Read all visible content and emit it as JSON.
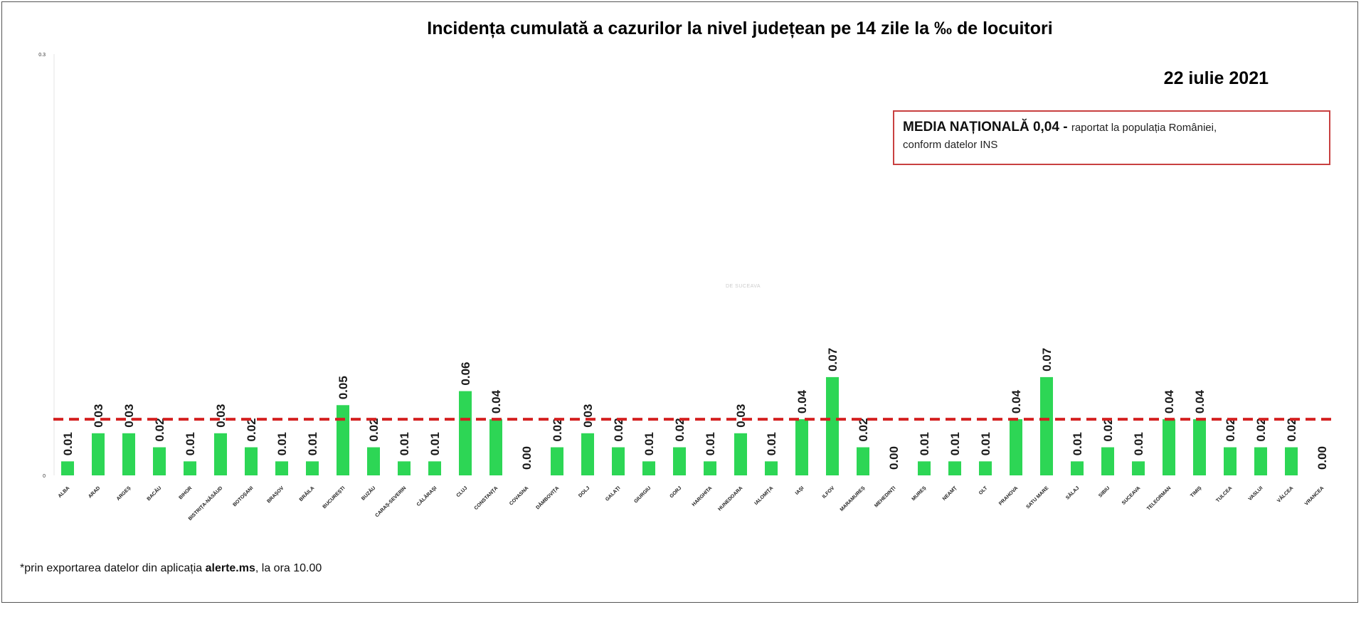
{
  "chart_data": {
    "type": "bar",
    "title": "Incidența cumulată a cazurilor la nivel județean pe 14 zile   la ‰ de locuitori",
    "date": "22 iulie 2021",
    "ylim": [
      0,
      0.3
    ],
    "y_ticks": [
      "0",
      "0.3"
    ],
    "reference_line": {
      "value": 0.04,
      "color": "#d42020",
      "style": "dashed"
    },
    "bar_color": "#2dd655",
    "categories": [
      "ALBA",
      "ARAD",
      "ARGEȘ",
      "BACĂU",
      "BIHOR",
      "BISTRIȚA-NĂSĂUD",
      "BOTOȘANI",
      "BRAȘOV",
      "BRĂILA",
      "BUCUREȘTI",
      "BUZĂU",
      "CARAȘ-SEVERIN",
      "CĂLĂRAȘI",
      "CLUJ",
      "CONSTANȚA",
      "COVASNA",
      "DÂMBOVIȚA",
      "DOLJ",
      "GALAȚI",
      "GIURGIU",
      "GORJ",
      "HARGHITA",
      "HUNEDOARA",
      "IALOMIȚA",
      "IAȘI",
      "ILFOV",
      "MARAMUREȘ",
      "MEHEDINȚI",
      "MUREȘ",
      "NEAMȚ",
      "OLT",
      "PRAHOVA",
      "SATU MARE",
      "SĂLAJ",
      "SIBIU",
      "SUCEAVA",
      "TELEORMAN",
      "TIMIȘ",
      "TULCEA",
      "VASLUI",
      "VÂLCEA",
      "VRANCEA"
    ],
    "values": [
      0.01,
      0.03,
      0.03,
      0.02,
      0.01,
      0.03,
      0.02,
      0.01,
      0.01,
      0.05,
      0.02,
      0.01,
      0.01,
      0.06,
      0.04,
      0.0,
      0.02,
      0.03,
      0.02,
      0.01,
      0.02,
      0.01,
      0.03,
      0.01,
      0.04,
      0.07,
      0.02,
      0.0,
      0.01,
      0.01,
      0.01,
      0.04,
      0.07,
      0.01,
      0.02,
      0.01,
      0.04,
      0.04,
      0.02,
      0.02,
      0.02,
      0.0
    ],
    "labels": [
      "0.01",
      "0.03",
      "0.03",
      "0.02",
      "0.01",
      "0.03",
      "0.02",
      "0.01",
      "0.01",
      "0.05",
      "0.02",
      "0.01",
      "0.01",
      "0.06",
      "0.04",
      "0.00",
      "0.02",
      "0.03",
      "0.02",
      "0.01",
      "0.02",
      "0.01",
      "0.03",
      "0.01",
      "0.04",
      "0.07",
      "0.02",
      "0.00",
      "0.01",
      "0.01",
      "0.01",
      "0.04",
      "0.07",
      "0.01",
      "0.02",
      "0.01",
      "0.04",
      "0.04",
      "0.02",
      "0.02",
      "0.02",
      "0.00"
    ]
  },
  "legend": {
    "strong": "MEDIA NAȚIONALĂ  0,04 - ",
    "rest": "raportat la populația României,",
    "line2": "conform datelor INS"
  },
  "footnote": {
    "prefix": "*prin exportarea datelor din aplicația ",
    "bold": "alerte.ms",
    "suffix": ", la ora 10.00"
  },
  "watermark": "DE SUCEAVA"
}
